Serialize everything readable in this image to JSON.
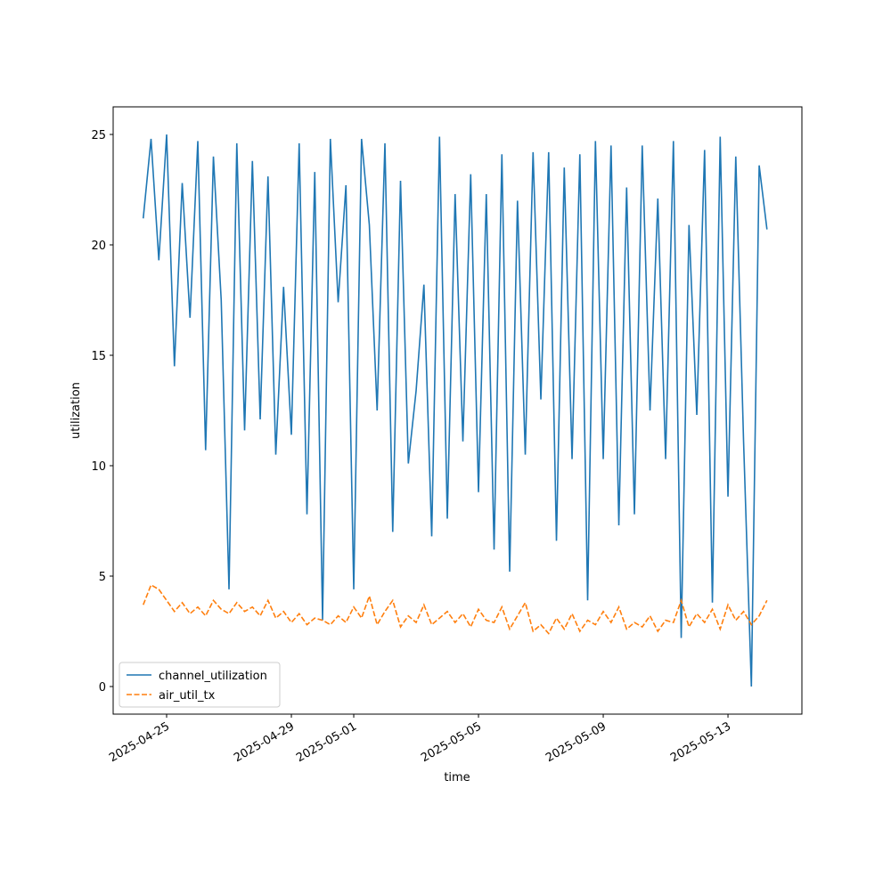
{
  "chart_data": {
    "type": "line",
    "x_label": "time",
    "y_label": "utilization",
    "x": [
      "2025-04-24 06:00",
      "2025-04-24 12:00",
      "2025-04-24 18:00",
      "2025-04-25 00:00",
      "2025-04-25 06:00",
      "2025-04-25 12:00",
      "2025-04-25 18:00",
      "2025-04-26 00:00",
      "2025-04-26 06:00",
      "2025-04-26 12:00",
      "2025-04-26 18:00",
      "2025-04-27 00:00",
      "2025-04-27 06:00",
      "2025-04-27 12:00",
      "2025-04-27 18:00",
      "2025-04-28 00:00",
      "2025-04-28 06:00",
      "2025-04-28 12:00",
      "2025-04-28 18:00",
      "2025-04-29 00:00",
      "2025-04-29 06:00",
      "2025-04-29 12:00",
      "2025-04-29 18:00",
      "2025-04-30 00:00",
      "2025-04-30 06:00",
      "2025-04-30 12:00",
      "2025-04-30 18:00",
      "2025-05-01 00:00",
      "2025-05-01 06:00",
      "2025-05-01 12:00",
      "2025-05-01 18:00",
      "2025-05-02 00:00",
      "2025-05-02 06:00",
      "2025-05-02 12:00",
      "2025-05-02 18:00",
      "2025-05-03 00:00",
      "2025-05-03 06:00",
      "2025-05-03 12:00",
      "2025-05-03 18:00",
      "2025-05-04 00:00",
      "2025-05-04 06:00",
      "2025-05-04 12:00",
      "2025-05-04 18:00",
      "2025-05-05 00:00",
      "2025-05-05 06:00",
      "2025-05-05 12:00",
      "2025-05-05 18:00",
      "2025-05-06 00:00",
      "2025-05-06 06:00",
      "2025-05-06 12:00",
      "2025-05-06 18:00",
      "2025-05-07 00:00",
      "2025-05-07 06:00",
      "2025-05-07 12:00",
      "2025-05-07 18:00",
      "2025-05-08 00:00",
      "2025-05-08 06:00",
      "2025-05-08 12:00",
      "2025-05-08 18:00",
      "2025-05-09 00:00",
      "2025-05-09 06:00",
      "2025-05-09 12:00",
      "2025-05-09 18:00",
      "2025-05-10 00:00",
      "2025-05-10 06:00",
      "2025-05-10 12:00",
      "2025-05-10 18:00",
      "2025-05-11 00:00",
      "2025-05-11 06:00",
      "2025-05-11 12:00",
      "2025-05-11 18:00",
      "2025-05-12 00:00",
      "2025-05-12 06:00",
      "2025-05-12 12:00",
      "2025-05-12 18:00",
      "2025-05-13 00:00",
      "2025-05-13 06:00",
      "2025-05-13 12:00",
      "2025-05-13 18:00",
      "2025-05-14 00:00",
      "2025-05-14 06:00"
    ],
    "series": [
      {
        "name": "channel_utilization",
        "color": "#1f77b4",
        "linestyle": "solid",
        "values": [
          21.2,
          24.8,
          19.3,
          25.0,
          14.5,
          22.8,
          16.7,
          24.7,
          10.7,
          24.0,
          17.5,
          4.4,
          24.6,
          11.6,
          23.8,
          12.1,
          23.1,
          10.5,
          18.1,
          11.4,
          24.6,
          7.8,
          23.3,
          3.0,
          24.8,
          17.4,
          22.7,
          4.4,
          24.8,
          20.9,
          12.5,
          24.6,
          7.0,
          22.9,
          10.1,
          13.4,
          18.2,
          6.8,
          24.9,
          7.6,
          22.3,
          11.1,
          23.2,
          8.8,
          22.3,
          6.2,
          24.1,
          5.2,
          22.0,
          10.5,
          24.2,
          13.0,
          24.2,
          6.6,
          23.5,
          10.3,
          24.1,
          3.9,
          24.7,
          10.3,
          24.5,
          7.3,
          22.6,
          7.8,
          24.5,
          12.5,
          22.1,
          10.3,
          24.7,
          2.2,
          20.9,
          12.3,
          24.3,
          3.8,
          24.9,
          8.6,
          24.0,
          11.1,
          0.0,
          23.6,
          20.7
        ]
      },
      {
        "name": "air_util_tx",
        "color": "#ff7f0e",
        "linestyle": "dashed",
        "values": [
          3.7,
          4.6,
          4.4,
          3.9,
          3.4,
          3.8,
          3.3,
          3.6,
          3.2,
          3.9,
          3.5,
          3.3,
          3.8,
          3.4,
          3.6,
          3.2,
          3.9,
          3.1,
          3.4,
          2.9,
          3.3,
          2.8,
          3.1,
          3.0,
          2.8,
          3.2,
          2.9,
          3.6,
          3.1,
          4.1,
          2.8,
          3.4,
          3.9,
          2.7,
          3.2,
          2.9,
          3.7,
          2.8,
          3.1,
          3.4,
          2.9,
          3.3,
          2.7,
          3.5,
          3.0,
          2.9,
          3.6,
          2.6,
          3.2,
          3.8,
          2.5,
          2.8,
          2.4,
          3.1,
          2.6,
          3.3,
          2.5,
          3.0,
          2.8,
          3.4,
          2.9,
          3.6,
          2.6,
          2.9,
          2.7,
          3.2,
          2.5,
          3.0,
          2.9,
          3.9,
          2.7,
          3.3,
          2.9,
          3.5,
          2.6,
          3.7,
          3.0,
          3.4,
          2.8,
          3.2,
          3.9
        ]
      }
    ],
    "xlim": [
      "2025-04-23 06:51",
      "2025-05-15 08:53"
    ],
    "xticks": [
      "2025-04-25",
      "2025-04-29",
      "2025-05-01",
      "2025-05-05",
      "2025-05-09",
      "2025-05-13"
    ],
    "ylim": [
      -1.25,
      26.25
    ],
    "yticks": [
      0,
      5,
      10,
      15,
      20,
      25
    ],
    "legend": "lower left"
  }
}
